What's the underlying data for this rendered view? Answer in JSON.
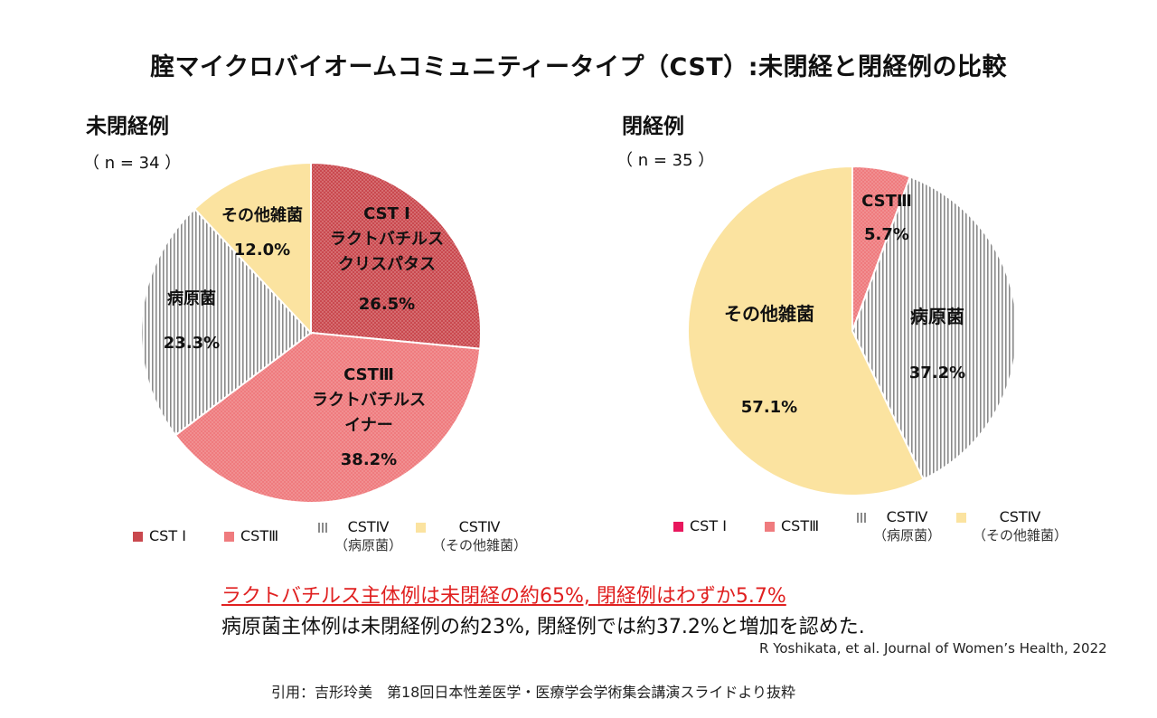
{
  "title": "腟マイクロバイオームコミュニティータイプ（CST）:未閉経と閉経例の比較",
  "colors": {
    "cst1_left": "#c9484e",
    "cst3_left": "#ef7b7e",
    "pathogen": "#888888",
    "others": "#fbe3a0",
    "cst1_right": "#e8175d",
    "cst3_right": "#ef7b7e"
  },
  "chart_data": [
    {
      "type": "pie",
      "title": "未閉経例",
      "n_label": "（ n = 34 ）",
      "slices": [
        {
          "key": "cst1",
          "value": 26.5,
          "label_lines": [
            "CST Ⅰ",
            "ラクトバチルス",
            "クリスパタス"
          ],
          "value_label": "26.5%"
        },
        {
          "key": "cst3",
          "value": 38.2,
          "label_lines": [
            "CSTⅢ",
            "ラクトバチルス",
            "イナー"
          ],
          "value_label": "38.2%"
        },
        {
          "key": "pathogen",
          "value": 23.3,
          "label_lines": [
            "病原菌"
          ],
          "value_label": "23.3%"
        },
        {
          "key": "others",
          "value": 12.0,
          "label_lines": [
            "その他雑菌"
          ],
          "value_label": "12.0%"
        }
      ],
      "legend": [
        {
          "key": "cst1",
          "label": "CST Ⅰ",
          "sub": ""
        },
        {
          "key": "cst3",
          "label": "CSTⅢ",
          "sub": ""
        },
        {
          "key": "pathogen",
          "label": "CSTⅣ",
          "sub": "（病原菌）"
        },
        {
          "key": "others",
          "label": "CSTⅣ",
          "sub": "（その他雑菌）"
        }
      ]
    },
    {
      "type": "pie",
      "title": "閉経例",
      "n_label": "（ n = 35 ）",
      "slices": [
        {
          "key": "cst3",
          "value": 5.7,
          "label_lines": [
            "CSTⅢ"
          ],
          "value_label": "5.7%"
        },
        {
          "key": "pathogen",
          "value": 37.2,
          "label_lines": [
            "病原菌"
          ],
          "value_label": "37.2%"
        },
        {
          "key": "others",
          "value": 57.1,
          "label_lines": [
            "その他雑菌"
          ],
          "value_label": "57.1%"
        }
      ],
      "legend": [
        {
          "key": "cst1",
          "label": "CST Ⅰ",
          "sub": ""
        },
        {
          "key": "cst3",
          "label": "CSTⅢ",
          "sub": ""
        },
        {
          "key": "pathogen",
          "label": "CSTⅣ",
          "sub": "（病原菌）"
        },
        {
          "key": "others",
          "label": "CSTⅣ",
          "sub": "（その他雑菌）"
        }
      ]
    }
  ],
  "summary": {
    "line1": "ラクトバチルス主体例は未閉経の約65%, 閉経例はわずか5.7%",
    "line2": "病原菌主体例は未閉経例の約23%, 閉経例では約37.2%と増加を認めた."
  },
  "reference": "R Yoshikata, et al. Journal of Women’s Health, 2022",
  "citation": "引用：吉形玲美　第18回日本性差医学・医療学会学術集会講演スライドより抜粋"
}
